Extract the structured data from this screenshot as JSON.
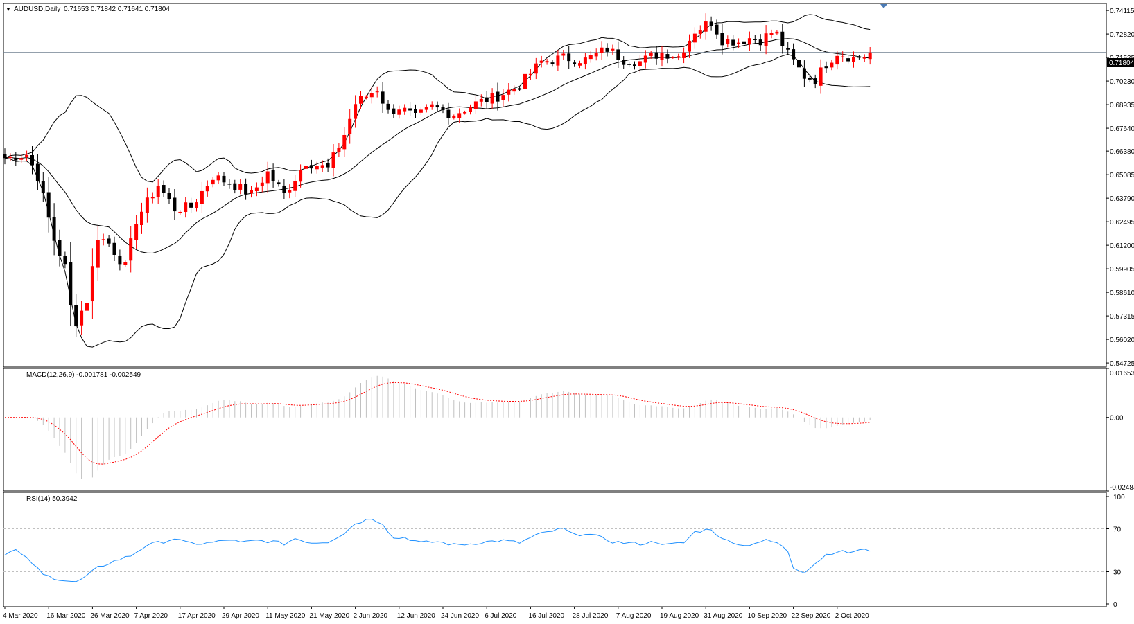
{
  "main_header": {
    "symbol": "AUDUSD,Daily",
    "ohlc": "0.71653 0.71842 0.71641 0.71804"
  },
  "current_price_label": "0.71804",
  "macd_header": "MACD(12,26,9) -0.001781 -0.002549",
  "rsi_header": "RSI(14) 50.3942",
  "colors": {
    "bull": "#ff0000",
    "bear": "#000000",
    "bands": "#000000",
    "macd_hist": "#c0c0c0",
    "macd_signal": "#ff0000",
    "rsi_line": "#1e90ff",
    "grid_level": "#c0c0c0",
    "border": "#000000"
  },
  "chart_data": [
    {
      "type": "candlestick",
      "title": "AUDUSD,Daily",
      "y_ticks": [
        "0.74115",
        "0.72820",
        "0.71525",
        "0.70230",
        "0.68935",
        "0.67640",
        "0.66380",
        "0.65085",
        "0.63790",
        "0.62495",
        "0.61200",
        "0.59905",
        "0.58610",
        "0.57315",
        "0.56020",
        "0.54725"
      ],
      "ylim": [
        0.545,
        0.745
      ],
      "x_ticks": [
        "4 Mar 2020",
        "16 Mar 2020",
        "26 Mar 2020",
        "7 Apr 2020",
        "17 Apr 2020",
        "29 Apr 2020",
        "11 May 2020",
        "21 May 2020",
        "2 Jun 2020",
        "12 Jun 2020",
        "24 Jun 2020",
        "6 Jul 2020",
        "16 Jul 2020",
        "28 Jul 2020",
        "7 Aug 2020",
        "19 Aug 2020",
        "31 Aug 2020",
        "10 Sep 2020",
        "22 Sep 2020",
        "2 Oct 2020"
      ],
      "x_tick_index": [
        0,
        8,
        16,
        24,
        32,
        40,
        48,
        56,
        64,
        72,
        80,
        88,
        96,
        104,
        112,
        120,
        128,
        136,
        144,
        152
      ],
      "close_anchors": [
        [
          0,
          0.66
        ],
        [
          4,
          0.662
        ],
        [
          6,
          0.65
        ],
        [
          9,
          0.615
        ],
        [
          11,
          0.6
        ],
        [
          12,
          0.578
        ],
        [
          13,
          0.57
        ],
        [
          15,
          0.582
        ],
        [
          17,
          0.617
        ],
        [
          19,
          0.613
        ],
        [
          22,
          0.6
        ],
        [
          24,
          0.626
        ],
        [
          28,
          0.645
        ],
        [
          31,
          0.632
        ],
        [
          34,
          0.633
        ],
        [
          38,
          0.65
        ],
        [
          42,
          0.645
        ],
        [
          45,
          0.64
        ],
        [
          48,
          0.652
        ],
        [
          51,
          0.64
        ],
        [
          55,
          0.658
        ],
        [
          59,
          0.654
        ],
        [
          62,
          0.673
        ],
        [
          64,
          0.69
        ],
        [
          68,
          0.698
        ],
        [
          70,
          0.685
        ],
        [
          72,
          0.688
        ],
        [
          75,
          0.682
        ],
        [
          78,
          0.688
        ],
        [
          82,
          0.684
        ],
        [
          86,
          0.69
        ],
        [
          90,
          0.694
        ],
        [
          94,
          0.7
        ],
        [
          98,
          0.713
        ],
        [
          102,
          0.715
        ],
        [
          106,
          0.714
        ],
        [
          110,
          0.72
        ],
        [
          113,
          0.714
        ],
        [
          116,
          0.713
        ],
        [
          120,
          0.718
        ],
        [
          123,
          0.716
        ],
        [
          126,
          0.73
        ],
        [
          129,
          0.735
        ],
        [
          131,
          0.725
        ],
        [
          134,
          0.724
        ],
        [
          136,
          0.726
        ],
        [
          138,
          0.725
        ],
        [
          140,
          0.729
        ],
        [
          141,
          0.728
        ],
        [
          143,
          0.717
        ],
        [
          146,
          0.705
        ],
        [
          148,
          0.703
        ],
        [
          150,
          0.712
        ],
        [
          152,
          0.718
        ],
        [
          155,
          0.715
        ],
        [
          157,
          0.716
        ],
        [
          158,
          0.718
        ]
      ],
      "indicator": "Bollinger Bands"
    },
    {
      "type": "bar",
      "title": "MACD(12,26,9)",
      "y_ticks": [
        "0.016538",
        "0.00",
        "-0.024848"
      ],
      "ylim": [
        -0.024848,
        0.016538
      ],
      "series": [
        {
          "name": "MACD"
        },
        {
          "name": "Signal"
        }
      ]
    },
    {
      "type": "line",
      "title": "RSI(14)",
      "y_ticks": [
        "100",
        "70",
        "30",
        "0"
      ],
      "ylim": [
        0,
        100
      ],
      "levels": [
        70,
        30
      ],
      "rsi_anchors": [
        [
          0,
          47
        ],
        [
          2,
          50
        ],
        [
          5,
          38
        ],
        [
          7,
          27
        ],
        [
          10,
          23
        ],
        [
          13,
          20
        ],
        [
          15,
          26
        ],
        [
          17,
          34
        ],
        [
          20,
          40
        ],
        [
          23,
          45
        ],
        [
          26,
          55
        ],
        [
          29,
          58
        ],
        [
          31,
          61
        ],
        [
          33,
          57
        ],
        [
          36,
          56
        ],
        [
          39,
          58
        ],
        [
          41,
          60
        ],
        [
          43,
          57
        ],
        [
          46,
          59
        ],
        [
          49,
          58
        ],
        [
          51,
          56
        ],
        [
          53,
          61
        ],
        [
          56,
          57
        ],
        [
          59,
          58
        ],
        [
          62,
          66
        ],
        [
          64,
          75
        ],
        [
          67,
          80
        ],
        [
          69,
          75
        ],
        [
          71,
          61
        ],
        [
          73,
          62
        ],
        [
          76,
          57
        ],
        [
          79,
          58
        ],
        [
          82,
          55
        ],
        [
          85,
          56
        ],
        [
          88,
          58
        ],
        [
          91,
          59
        ],
        [
          94,
          57
        ],
        [
          97,
          64
        ],
        [
          100,
          68
        ],
        [
          102,
          70
        ],
        [
          104,
          64
        ],
        [
          106,
          66
        ],
        [
          108,
          63
        ],
        [
          111,
          58
        ],
        [
          113,
          57
        ],
        [
          116,
          56
        ],
        [
          119,
          58
        ],
        [
          121,
          55
        ],
        [
          124,
          57
        ],
        [
          126,
          67
        ],
        [
          129,
          70
        ],
        [
          131,
          60
        ],
        [
          133,
          58
        ],
        [
          135,
          54
        ],
        [
          137,
          57
        ],
        [
          139,
          59
        ],
        [
          141,
          57
        ],
        [
          143,
          49
        ],
        [
          144,
          34
        ],
        [
          146,
          30
        ],
        [
          148,
          38
        ],
        [
          150,
          46
        ],
        [
          152,
          49
        ],
        [
          154,
          48
        ],
        [
          156,
          50
        ],
        [
          158,
          50
        ]
      ]
    }
  ]
}
